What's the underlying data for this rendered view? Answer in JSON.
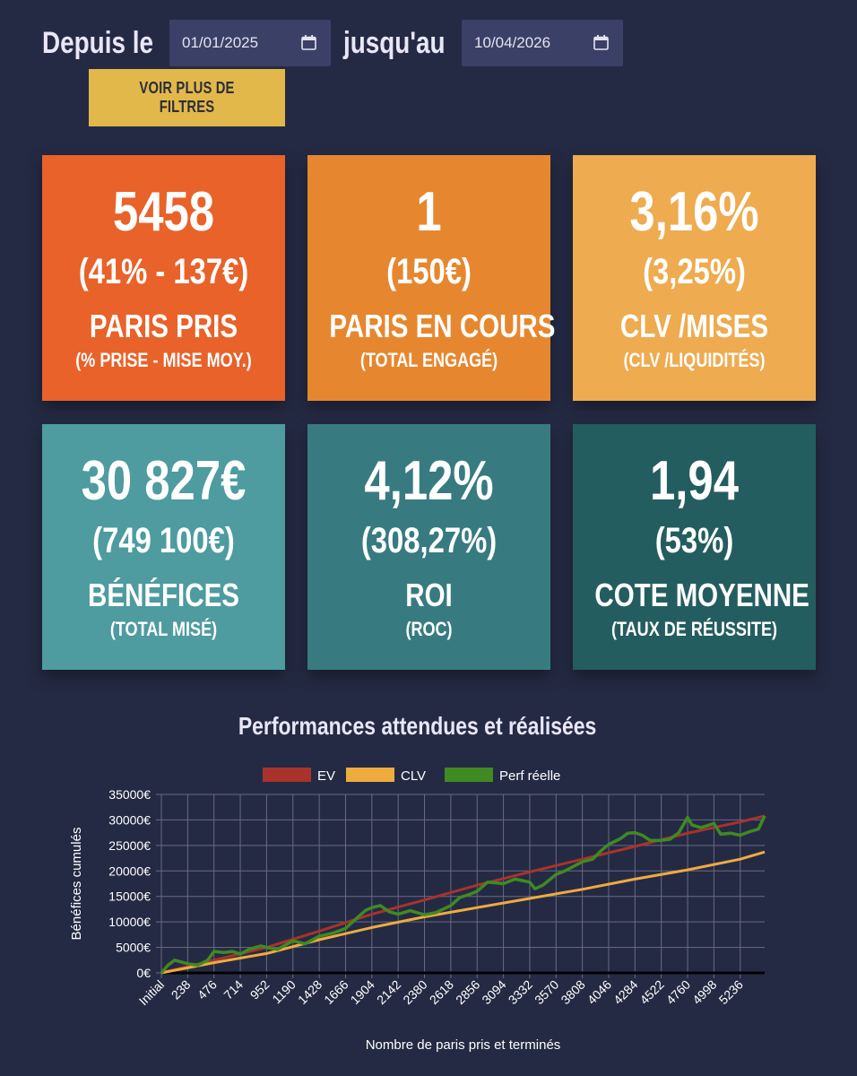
{
  "filters": {
    "from_label": "Depuis le",
    "from_value": "01/01/2025",
    "to_label": "jusqu'au",
    "to_value": "10/04/2026",
    "more_filters_label": "VOIR PLUS DE FILTRES"
  },
  "cards": [
    {
      "main": "5458",
      "sub": "(41% - 137€)",
      "title": "PARIS PRIS",
      "caption": "(% PRISE - MISE MOY.)",
      "color": "#e8622a"
    },
    {
      "main": "1",
      "sub": "(150€)",
      "title": "PARIS EN COURS",
      "caption": "(TOTAL ENGAGÉ)",
      "color": "#e6872f"
    },
    {
      "main": "3,16%",
      "sub": "(3,25%)",
      "title": "CLV /MISES",
      "caption": "(CLV /LIQUIDITÉS)",
      "color": "#eeab4f"
    },
    {
      "main": "30 827€",
      "sub": "(749 100€)",
      "title": "BÉNÉFICES",
      "caption": "(TOTAL MISÉ)",
      "color": "#4e9ba0"
    },
    {
      "main": "4,12%",
      "sub": "(308,27%)",
      "title": "ROI",
      "caption": "(ROC)",
      "color": "#377b81"
    },
    {
      "main": "1,94",
      "sub": "(53%)",
      "title": "COTE MOYENNE",
      "caption": "(TAUX DE RÉUSSITE)",
      "color": "#245d5f"
    }
  ],
  "chart_data": {
    "type": "line",
    "title": "Performances attendues et réalisées",
    "xlabel": "Nombre de paris pris et terminés",
    "ylabel": "Bénéfices cumulés",
    "ylim": [
      0,
      35000
    ],
    "xlim": [
      0,
      5457
    ],
    "y_ticks": [
      "0€",
      "5000€",
      "10000€",
      "15000€",
      "20000€",
      "25000€",
      "30000€",
      "35000€"
    ],
    "x_ticks": [
      "Initial",
      "238",
      "476",
      "714",
      "952",
      "1190",
      "1428",
      "1666",
      "1904",
      "2142",
      "2380",
      "2618",
      "2856",
      "3094",
      "3332",
      "3570",
      "3808",
      "4046",
      "4284",
      "4522",
      "4760",
      "4998",
      "5236"
    ],
    "legend_position": "top",
    "grid": true,
    "series": [
      {
        "name": "EV",
        "color": "#a8332a",
        "x": [
          0,
          476,
          952,
          1428,
          1904,
          2380,
          2856,
          3332,
          3808,
          4284,
          4760,
          5236,
          5457
        ],
        "y": [
          0,
          2500,
          5000,
          8200,
          11500,
          14300,
          17200,
          19800,
          22300,
          24800,
          27400,
          29600,
          30800
        ]
      },
      {
        "name": "CLV",
        "color": "#eeab3f",
        "x": [
          0,
          476,
          952,
          1428,
          1904,
          2380,
          2856,
          3332,
          3808,
          4284,
          4760,
          5236,
          5457
        ],
        "y": [
          0,
          2000,
          3800,
          6500,
          8900,
          11000,
          12800,
          14600,
          16400,
          18400,
          20200,
          22300,
          23700
        ]
      },
      {
        "name": "Perf réelle",
        "color": "#3f8a22",
        "x": [
          0,
          60,
          120,
          238,
          330,
          420,
          476,
          560,
          640,
          714,
          800,
          900,
          952,
          1050,
          1190,
          1300,
          1428,
          1550,
          1666,
          1780,
          1850,
          1904,
          1980,
          2060,
          2142,
          2250,
          2380,
          2480,
          2618,
          2700,
          2800,
          2856,
          2950,
          3094,
          3200,
          3332,
          3380,
          3450,
          3570,
          3650,
          3808,
          3900,
          3980,
          4046,
          4150,
          4220,
          4284,
          4350,
          4420,
          4522,
          4600,
          4680,
          4760,
          4800,
          4880,
          4998,
          5060,
          5150,
          5236,
          5320,
          5400,
          5457
        ],
        "y": [
          0,
          1500,
          2500,
          1800,
          1500,
          2500,
          4200,
          4000,
          4200,
          3700,
          4700,
          5300,
          5000,
          4600,
          6300,
          5700,
          7200,
          7800,
          8700,
          11000,
          12300,
          12800,
          13200,
          12000,
          11500,
          12200,
          11400,
          11800,
          13200,
          14800,
          15500,
          16000,
          17800,
          17500,
          18400,
          17800,
          16500,
          17200,
          19300,
          20000,
          21800,
          22300,
          24000,
          25200,
          26300,
          27400,
          27500,
          27000,
          26000,
          26000,
          26200,
          27500,
          30500,
          29000,
          28500,
          29300,
          27200,
          27400,
          27000,
          27700,
          28200,
          30800
        ]
      }
    ]
  }
}
